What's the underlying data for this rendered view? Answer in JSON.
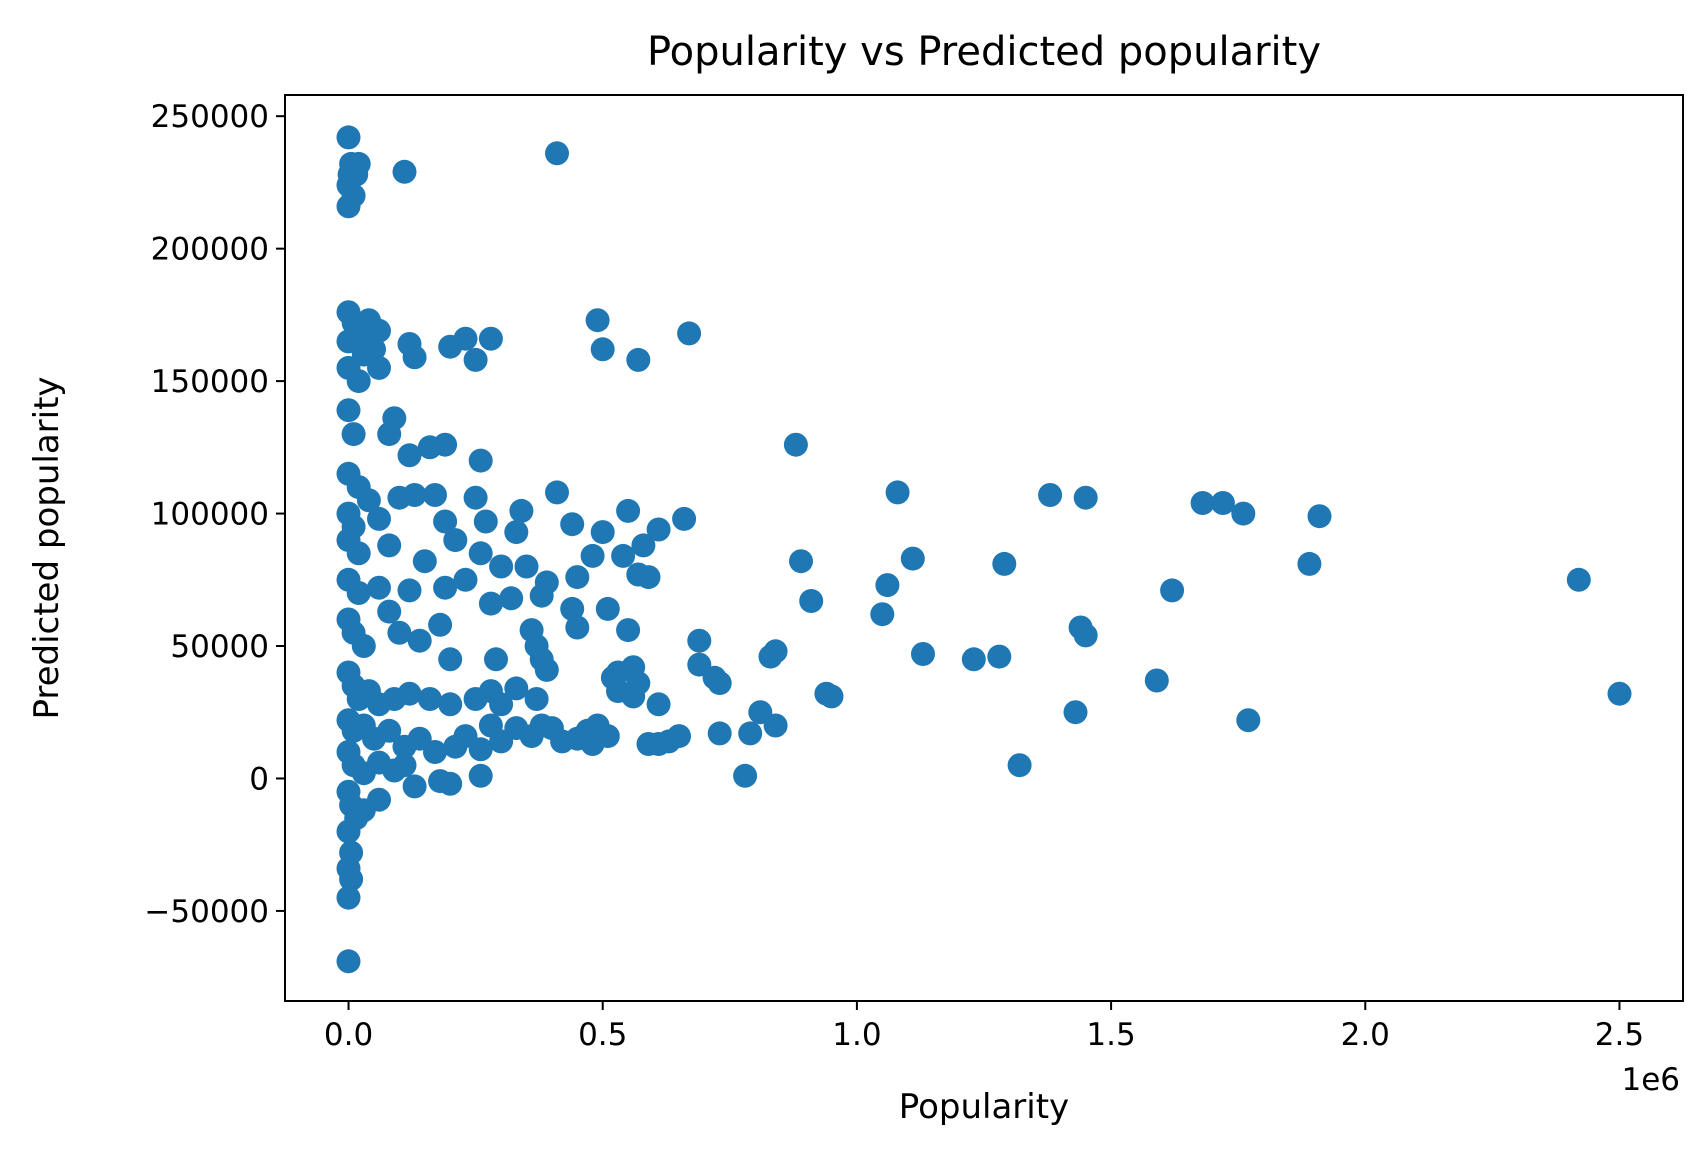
{
  "chart_data": {
    "type": "scatter",
    "title": "Popularity vs Predicted popularity",
    "xlabel": "Popularity",
    "ylabel": "Predicted popularity",
    "x_offset_label": "1e6",
    "xlim": [
      -125000,
      2625000
    ],
    "ylim": [
      -84000,
      258000
    ],
    "x_ticks": [
      0,
      500000,
      1000000,
      1500000,
      2000000,
      2500000
    ],
    "x_tick_labels": [
      "0.0",
      "0.5",
      "1.0",
      "1.5",
      "2.0",
      "2.5"
    ],
    "y_ticks": [
      -50000,
      0,
      50000,
      100000,
      150000,
      200000,
      250000
    ],
    "y_tick_labels": [
      "−50000",
      "0",
      "50000",
      "100000",
      "150000",
      "200000",
      "250000"
    ],
    "grid": false,
    "color": "#1f77b4",
    "points": [
      [
        0,
        242000
      ],
      [
        5000,
        232000
      ],
      [
        20000,
        232000
      ],
      [
        2000,
        228000
      ],
      [
        15000,
        228000
      ],
      [
        0,
        224000
      ],
      [
        10000,
        220000
      ],
      [
        0,
        216000
      ],
      [
        110000,
        229000
      ],
      [
        410000,
        236000
      ],
      [
        0,
        176000
      ],
      [
        10000,
        172000
      ],
      [
        40000,
        173000
      ],
      [
        60000,
        169000
      ],
      [
        20000,
        167000
      ],
      [
        0,
        165000
      ],
      [
        30000,
        160000
      ],
      [
        50000,
        162000
      ],
      [
        0,
        155000
      ],
      [
        20000,
        150000
      ],
      [
        60000,
        155000
      ],
      [
        120000,
        164000
      ],
      [
        130000,
        159000
      ],
      [
        200000,
        163000
      ],
      [
        230000,
        166000
      ],
      [
        250000,
        158000
      ],
      [
        280000,
        166000
      ],
      [
        490000,
        173000
      ],
      [
        500000,
        162000
      ],
      [
        570000,
        158000
      ],
      [
        670000,
        168000
      ],
      [
        0,
        139000
      ],
      [
        10000,
        130000
      ],
      [
        90000,
        136000
      ],
      [
        80000,
        130000
      ],
      [
        120000,
        122000
      ],
      [
        160000,
        125000
      ],
      [
        190000,
        126000
      ],
      [
        260000,
        120000
      ],
      [
        0,
        115000
      ],
      [
        20000,
        110000
      ],
      [
        0,
        100000
      ],
      [
        10000,
        95000
      ],
      [
        40000,
        105000
      ],
      [
        60000,
        98000
      ],
      [
        100000,
        106000
      ],
      [
        130000,
        107000
      ],
      [
        170000,
        107000
      ],
      [
        190000,
        97000
      ],
      [
        250000,
        106000
      ],
      [
        270000,
        97000
      ],
      [
        340000,
        101000
      ],
      [
        410000,
        108000
      ],
      [
        440000,
        96000
      ],
      [
        550000,
        101000
      ],
      [
        580000,
        88000
      ],
      [
        610000,
        94000
      ],
      [
        660000,
        98000
      ],
      [
        880000,
        126000
      ],
      [
        1080000,
        108000
      ],
      [
        1380000,
        107000
      ],
      [
        1450000,
        106000
      ],
      [
        1680000,
        104000
      ],
      [
        1720000,
        104000
      ],
      [
        1760000,
        100000
      ],
      [
        1910000,
        99000
      ],
      [
        0,
        90000
      ],
      [
        20000,
        85000
      ],
      [
        80000,
        88000
      ],
      [
        150000,
        82000
      ],
      [
        210000,
        90000
      ],
      [
        260000,
        85000
      ],
      [
        300000,
        80000
      ],
      [
        330000,
        93000
      ],
      [
        350000,
        80000
      ],
      [
        390000,
        74000
      ],
      [
        480000,
        84000
      ],
      [
        500000,
        93000
      ],
      [
        540000,
        84000
      ],
      [
        570000,
        77000
      ],
      [
        590000,
        76000
      ],
      [
        890000,
        82000
      ],
      [
        1060000,
        73000
      ],
      [
        1110000,
        83000
      ],
      [
        1290000,
        81000
      ],
      [
        1890000,
        81000
      ],
      [
        1620000,
        71000
      ],
      [
        2420000,
        75000
      ],
      [
        0,
        75000
      ],
      [
        20000,
        70000
      ],
      [
        60000,
        72000
      ],
      [
        120000,
        71000
      ],
      [
        190000,
        72000
      ],
      [
        230000,
        75000
      ],
      [
        280000,
        66000
      ],
      [
        320000,
        68000
      ],
      [
        380000,
        69000
      ],
      [
        450000,
        76000
      ],
      [
        440000,
        64000
      ],
      [
        450000,
        57000
      ],
      [
        510000,
        64000
      ],
      [
        550000,
        56000
      ],
      [
        910000,
        67000
      ],
      [
        1050000,
        62000
      ],
      [
        0,
        60000
      ],
      [
        10000,
        55000
      ],
      [
        30000,
        50000
      ],
      [
        80000,
        63000
      ],
      [
        100000,
        55000
      ],
      [
        140000,
        52000
      ],
      [
        180000,
        58000
      ],
      [
        200000,
        45000
      ],
      [
        290000,
        45000
      ],
      [
        360000,
        56000
      ],
      [
        370000,
        50000
      ],
      [
        380000,
        45000
      ],
      [
        390000,
        41000
      ],
      [
        520000,
        38000
      ],
      [
        530000,
        40000
      ],
      [
        560000,
        42000
      ],
      [
        690000,
        52000
      ],
      [
        690000,
        43000
      ],
      [
        720000,
        38000
      ],
      [
        730000,
        36000
      ],
      [
        840000,
        48000
      ],
      [
        830000,
        46000
      ],
      [
        1130000,
        47000
      ],
      [
        1230000,
        45000
      ],
      [
        1280000,
        46000
      ],
      [
        1440000,
        57000
      ],
      [
        1450000,
        54000
      ],
      [
        0,
        40000
      ],
      [
        10000,
        35000
      ],
      [
        20000,
        30000
      ],
      [
        40000,
        33000
      ],
      [
        60000,
        28000
      ],
      [
        90000,
        30000
      ],
      [
        120000,
        32000
      ],
      [
        160000,
        30000
      ],
      [
        200000,
        28000
      ],
      [
        250000,
        30000
      ],
      [
        280000,
        33000
      ],
      [
        300000,
        28000
      ],
      [
        330000,
        34000
      ],
      [
        370000,
        30000
      ],
      [
        530000,
        33000
      ],
      [
        560000,
        31000
      ],
      [
        570000,
        36000
      ],
      [
        610000,
        28000
      ],
      [
        940000,
        32000
      ],
      [
        950000,
        31000
      ],
      [
        1590000,
        37000
      ],
      [
        2500000,
        32000
      ],
      [
        0,
        22000
      ],
      [
        10000,
        18000
      ],
      [
        30000,
        20000
      ],
      [
        50000,
        15000
      ],
      [
        80000,
        18000
      ],
      [
        110000,
        12000
      ],
      [
        140000,
        15000
      ],
      [
        170000,
        10000
      ],
      [
        210000,
        12000
      ],
      [
        230000,
        16000
      ],
      [
        260000,
        11000
      ],
      [
        280000,
        20000
      ],
      [
        300000,
        14000
      ],
      [
        330000,
        19000
      ],
      [
        360000,
        16000
      ],
      [
        380000,
        20000
      ],
      [
        400000,
        19000
      ],
      [
        420000,
        14000
      ],
      [
        450000,
        15000
      ],
      [
        470000,
        18000
      ],
      [
        490000,
        20000
      ],
      [
        480000,
        13000
      ],
      [
        510000,
        16000
      ],
      [
        590000,
        13000
      ],
      [
        610000,
        13000
      ],
      [
        630000,
        14000
      ],
      [
        650000,
        16000
      ],
      [
        730000,
        17000
      ],
      [
        790000,
        17000
      ],
      [
        810000,
        25000
      ],
      [
        840000,
        20000
      ],
      [
        1430000,
        25000
      ],
      [
        1770000,
        22000
      ],
      [
        0,
        10000
      ],
      [
        10000,
        5000
      ],
      [
        30000,
        2000
      ],
      [
        60000,
        6000
      ],
      [
        90000,
        3000
      ],
      [
        110000,
        5000
      ],
      [
        130000,
        -3000
      ],
      [
        180000,
        -1000
      ],
      [
        200000,
        -2000
      ],
      [
        260000,
        1000
      ],
      [
        780000,
        1000
      ],
      [
        1320000,
        5000
      ],
      [
        0,
        -5000
      ],
      [
        5000,
        -10000
      ],
      [
        15000,
        -15000
      ],
      [
        30000,
        -12000
      ],
      [
        60000,
        -8000
      ],
      [
        0,
        -20000
      ],
      [
        5000,
        -28000
      ],
      [
        0,
        -34000
      ],
      [
        5000,
        -38000
      ],
      [
        0,
        -45000
      ],
      [
        0,
        -69000
      ]
    ]
  }
}
